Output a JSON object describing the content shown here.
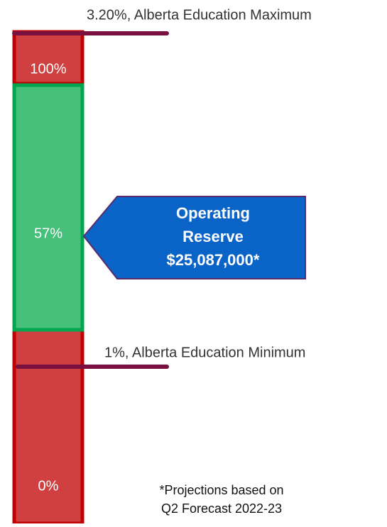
{
  "maximum_label": "3.20%, Alberta Education Maximum",
  "minimum_label": "1%, Alberta Education Minimum",
  "bar_labels": {
    "top": "100%",
    "current": "57%",
    "bottom": "0%"
  },
  "callout": {
    "lines": [
      "Operating",
      "Reserve",
      "$25,087,000*"
    ]
  },
  "footnote": {
    "lines": [
      "*Projections based on",
      "Q2 Forecast 2022-23"
    ]
  }
}
